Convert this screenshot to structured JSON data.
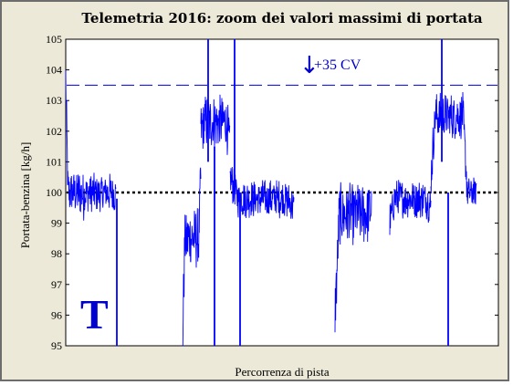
{
  "chart_data": {
    "type": "line",
    "title": "Telemetria 2016: zoom dei valori massimi di portata",
    "xlabel": "Percorrenza di pista",
    "ylabel": "Portata-benzina  [kg/h]",
    "ylim": [
      95,
      105
    ],
    "yticks": [
      "95",
      "96",
      "97",
      "98",
      "99",
      "100",
      "101",
      "102",
      "103",
      "104",
      "105"
    ],
    "grid": false,
    "reference_lines": [
      {
        "y": 100,
        "style": "dotted",
        "color": "#000000"
      },
      {
        "y": 103.5,
        "style": "dashed",
        "color": "#0000cc"
      }
    ],
    "annotation": "+35 CV",
    "watermark_letter": "T",
    "series": [
      {
        "color": "#0000ff",
        "segments": [
          {
            "x": [
              0,
              20
            ],
            "mean": 100.0,
            "noise": 0.6,
            "start": 103.8,
            "end": 99.8
          },
          {
            "x": [
              20,
              55
            ],
            "mean": 100.0,
            "noise": 0.5,
            "start": 99.9,
            "end": 99.9
          },
          {
            "x": [
              128,
              148
            ],
            "mean": 98.5,
            "noise": 0.8,
            "start": 95.0,
            "end": 100.5
          },
          {
            "x": [
              148,
              180
            ],
            "mean": 102.3,
            "noise": 0.7,
            "start": 102.0,
            "end": 101.5
          },
          {
            "x": [
              180,
              250
            ],
            "mean": 99.8,
            "noise": 0.5,
            "start": 100.5,
            "end": 99.5
          },
          {
            "x": [
              295,
              335
            ],
            "mean": 99.3,
            "noise": 0.8,
            "start": 96.0,
            "end": 99.5
          },
          {
            "x": [
              355,
              400
            ],
            "mean": 99.8,
            "noise": 0.5,
            "start": 99.0,
            "end": 99.5
          },
          {
            "x": [
              400,
              440
            ],
            "mean": 102.5,
            "noise": 0.6,
            "start": 100.5,
            "end": 100.0
          },
          {
            "x": [
              440,
              450
            ],
            "mean": 100.0,
            "noise": 0.4,
            "start": 100.0,
            "end": 100.2
          }
        ],
        "spikes": [
          {
            "x": 56,
            "y_from": 99.8,
            "y_to": 95.0
          },
          {
            "x": 156,
            "y_from": 101.0,
            "y_to": 105.0
          },
          {
            "x": 163,
            "y_from": 101.5,
            "y_to": 95.0
          },
          {
            "x": 185,
            "y_from": 100.0,
            "y_to": 105.0
          },
          {
            "x": 191,
            "y_from": 100.0,
            "y_to": 95.0
          },
          {
            "x": 412,
            "y_from": 101.0,
            "y_to": 105.0
          },
          {
            "x": 419,
            "y_from": 100.0,
            "y_to": 95.0
          }
        ]
      }
    ],
    "xrange": [
      0,
      474
    ]
  }
}
